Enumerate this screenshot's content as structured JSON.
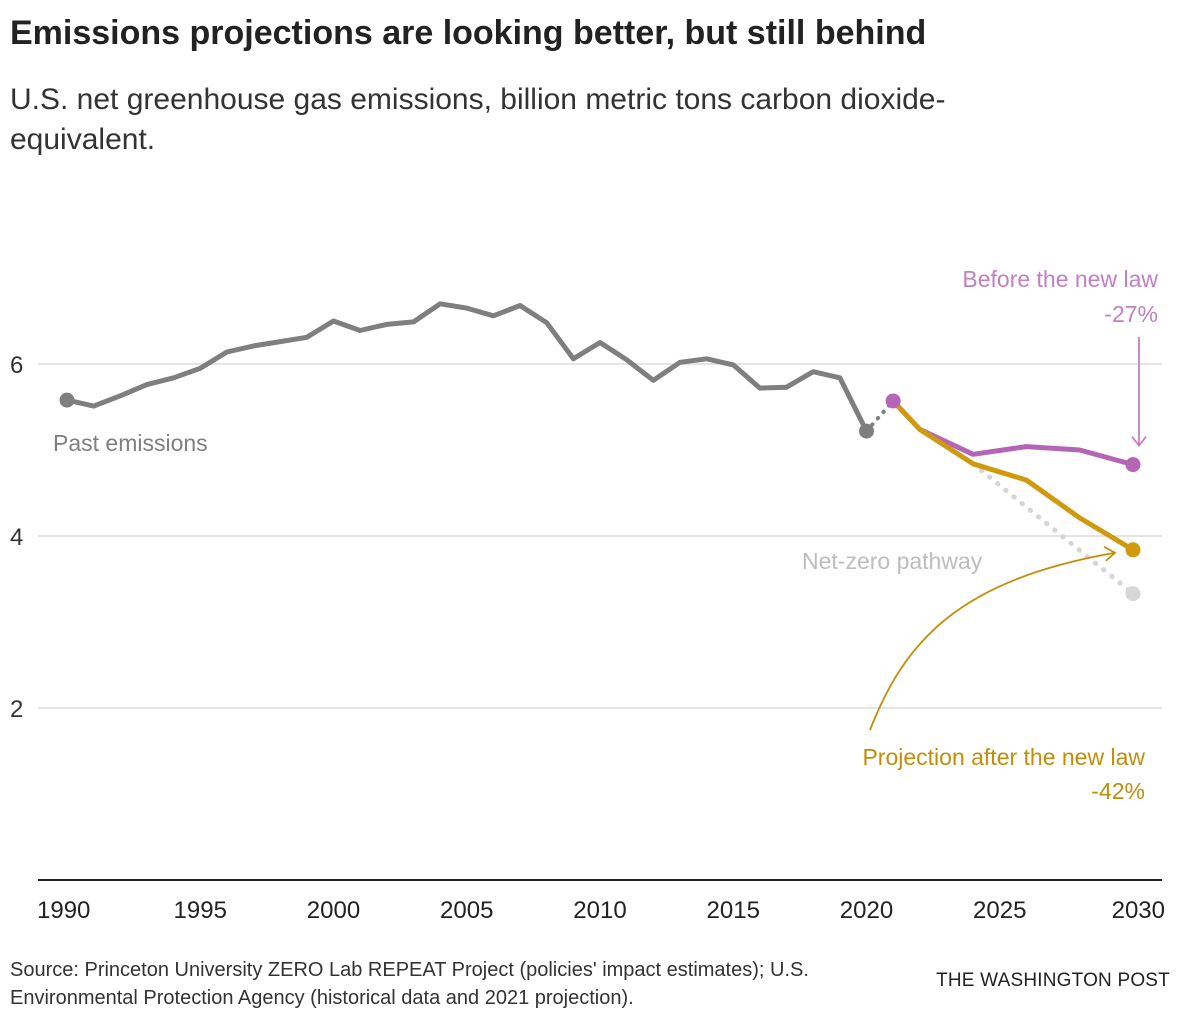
{
  "header": {
    "title": "Emissions projections are looking better, but still behind",
    "subtitle": "U.S. net greenhouse gas emissions, billion metric tons carbon dioxide-equivalent."
  },
  "footer": {
    "source": "Source: Princeton University ZERO Lab REPEAT Project (policies' impact estimates); U.S. Environmental Protection Agency (historical data and 2021 projection).",
    "brand": "THE WASHINGTON POST"
  },
  "annotations": {
    "past": "Past emissions",
    "before_law_label": "Before the new law",
    "before_law_pct": "-27%",
    "net_zero": "Net-zero pathway",
    "after_law_label": "Projection after the new law",
    "after_law_pct": "-42%"
  },
  "colors": {
    "past": "#7f7f7f",
    "before_law": "#b565b5",
    "before_law_text": "#c27fc2",
    "after_law": "#d09a0e",
    "after_law_text": "#c28e09",
    "net_zero": "#d6d6d6",
    "net_zero_text": "#bdbdbd",
    "grid": "#dcdcdc",
    "axis": "#222222"
  },
  "chart_data": {
    "type": "line",
    "x_ticks": [
      1990,
      1995,
      2000,
      2005,
      2010,
      2015,
      2020,
      2025,
      2030
    ],
    "y_ticks": [
      2,
      4,
      6
    ],
    "xlim": [
      1990,
      2030
    ],
    "ylim": [
      0,
      8
    ],
    "grid": true,
    "series": [
      {
        "key": "past",
        "x": [
          1990,
          1991,
          1992,
          1993,
          1994,
          1995,
          1996,
          1997,
          1998,
          1999,
          2000,
          2001,
          2002,
          2003,
          2004,
          2005,
          2006,
          2007,
          2008,
          2009,
          2010,
          2011,
          2012,
          2013,
          2014,
          2015,
          2016,
          2017,
          2018,
          2019,
          2020
        ],
        "y": [
          5.58,
          5.51,
          5.63,
          5.76,
          5.84,
          5.95,
          6.14,
          6.21,
          6.26,
          6.31,
          6.5,
          6.39,
          6.46,
          6.49,
          6.7,
          6.65,
          6.56,
          6.68,
          6.48,
          6.06,
          6.25,
          6.05,
          5.81,
          6.02,
          6.06,
          5.99,
          5.72,
          5.73,
          5.91,
          5.84,
          5.22
        ]
      },
      {
        "key": "past_2021",
        "x": [
          2020,
          2021
        ],
        "y": [
          5.22,
          5.57
        ]
      },
      {
        "key": "before_law",
        "x": [
          2021,
          2022,
          2024,
          2026,
          2028,
          2030
        ],
        "y": [
          5.57,
          5.24,
          4.95,
          5.04,
          5.0,
          4.83
        ]
      },
      {
        "key": "after_law",
        "x": [
          2021,
          2022,
          2024,
          2026,
          2028,
          2030
        ],
        "y": [
          5.57,
          5.24,
          4.84,
          4.65,
          4.21,
          3.84
        ]
      },
      {
        "key": "net_zero",
        "x": [
          2024,
          2030
        ],
        "y": [
          4.84,
          3.33
        ]
      }
    ]
  }
}
